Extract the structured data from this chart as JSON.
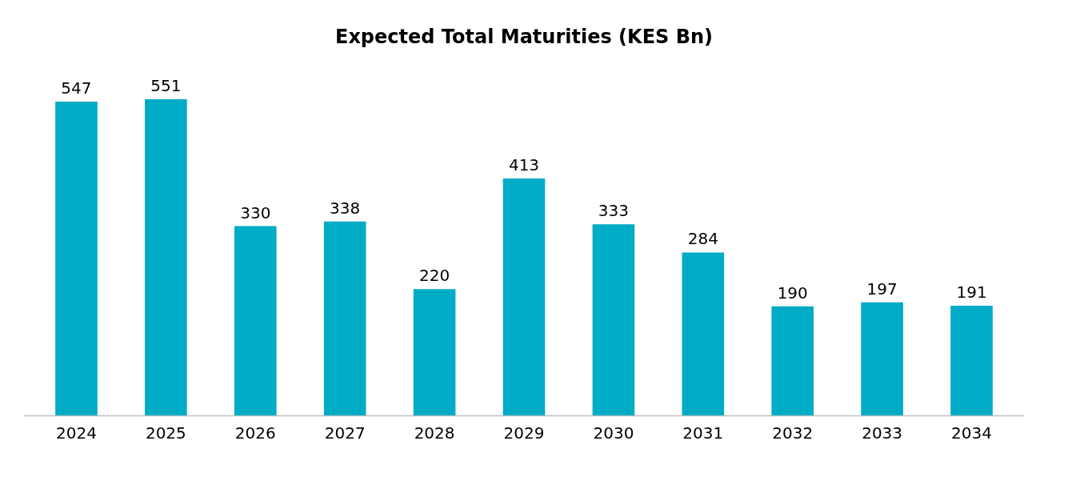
{
  "chart_data": {
    "type": "bar",
    "title": "Expected Total Maturities (KES Bn)",
    "categories": [
      "2024",
      "2025",
      "2026",
      "2027",
      "2028",
      "2029",
      "2030",
      "2031",
      "2032",
      "2033",
      "2034"
    ],
    "values": [
      547,
      551,
      330,
      338,
      220,
      413,
      333,
      284,
      190,
      197,
      191
    ],
    "color": "#00abc5",
    "data_labels": true
  }
}
